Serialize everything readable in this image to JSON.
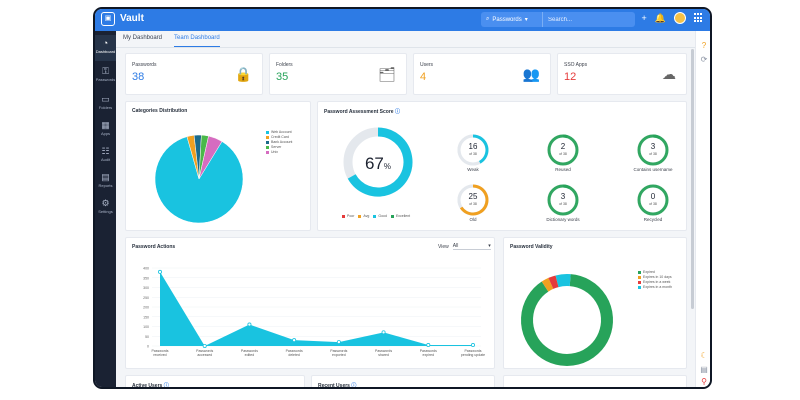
{
  "app": {
    "name": "Vault"
  },
  "topbar": {
    "search_scope": "Passwords",
    "search_placeholder": "Search..."
  },
  "sidebar": {
    "items": [
      {
        "label": "Dashboard",
        "icon": "dashboard-icon"
      },
      {
        "label": "Passwords",
        "icon": "key-icon"
      },
      {
        "label": "Folders",
        "icon": "folder-icon"
      },
      {
        "label": "Apps",
        "icon": "apps-icon"
      },
      {
        "label": "Audit",
        "icon": "audit-icon"
      },
      {
        "label": "Reports",
        "icon": "reports-icon"
      },
      {
        "label": "Settings",
        "icon": "settings-icon"
      }
    ]
  },
  "tabs": [
    {
      "label": "My Dashboard"
    },
    {
      "label": "Team Dashboard"
    }
  ],
  "stats": [
    {
      "label": "Passwords",
      "value": "38",
      "color": "#2d7be5",
      "icon": "lock-icon"
    },
    {
      "label": "Folders",
      "value": "35",
      "color": "#27a35a",
      "icon": "folder-icon"
    },
    {
      "label": "Users",
      "value": "4",
      "color": "#f0a020",
      "icon": "users-icon"
    },
    {
      "label": "SSO Apps",
      "value": "12",
      "color": "#e53b3b",
      "icon": "cloud-icon"
    }
  ],
  "categories": {
    "title": "Categories Distribution",
    "legend": [
      {
        "label": "Web Account",
        "color": "#19c3e0"
      },
      {
        "label": "Credit Card",
        "color": "#f0a020"
      },
      {
        "label": "Bank Account",
        "color": "#1b6a8a"
      },
      {
        "label": "Server",
        "color": "#4ab84a"
      },
      {
        "label": "Unix",
        "color": "#d66cc0"
      }
    ],
    "values": [
      33,
      1,
      1,
      1,
      2
    ]
  },
  "assessment": {
    "title": "Password Assessment Score",
    "score": "67",
    "score_unit": "%",
    "score_fraction": 0.67,
    "legend": [
      {
        "label": "Poor",
        "color": "#e53b3b"
      },
      {
        "label": "Avg",
        "color": "#f0a020"
      },
      {
        "label": "Good",
        "color": "#19c3e0"
      },
      {
        "label": "Excellent",
        "color": "#27a35a"
      }
    ],
    "metrics": [
      {
        "value": "16",
        "of": "of 38",
        "label": "Weak",
        "color": "#19c3e0",
        "fraction": 0.42
      },
      {
        "value": "2",
        "of": "of 38",
        "label": "Reused",
        "color": "#27a35a",
        "fraction": 0.05
      },
      {
        "value": "3",
        "of": "of 38",
        "label": "Contains username",
        "color": "#27a35a",
        "fraction": 0.08
      },
      {
        "value": "25",
        "of": "of 38",
        "label": "Old",
        "color": "#f0a020",
        "fraction": 0.66
      },
      {
        "value": "3",
        "of": "of 38",
        "label": "Dictionary words",
        "color": "#27a35a",
        "fraction": 0.08
      },
      {
        "value": "0",
        "of": "of 38",
        "label": "Recycled",
        "color": "#27a35a",
        "fraction": 0.0
      }
    ]
  },
  "actions": {
    "title": "Password Actions",
    "view_label": "View",
    "view_value": "All",
    "chart_data": {
      "type": "area",
      "categories": [
        "Passwords received",
        "Passwords accessed",
        "Passwords edited",
        "Passwords deleted",
        "Passwords exported",
        "Passwords shared",
        "Passwords expired",
        "Passwords pending update"
      ],
      "values": [
        380,
        0,
        110,
        30,
        20,
        70,
        5,
        5
      ],
      "ylim": [
        0,
        400
      ],
      "yticks": [
        0,
        50,
        100,
        150,
        200,
        250,
        300,
        350,
        400
      ],
      "color": "#19c3e0"
    }
  },
  "validity": {
    "title": "Password Validity",
    "legend": [
      {
        "label": "Expired",
        "color": "#27a35a"
      },
      {
        "label": "Expires in 10 days",
        "color": "#f0a020"
      },
      {
        "label": "Expires in a week",
        "color": "#e53b3b"
      },
      {
        "label": "Expires in a month",
        "color": "#19c3e0"
      }
    ],
    "values": [
      34,
      1,
      1,
      2
    ]
  },
  "bottom_cards": [
    {
      "title": "Active Users"
    },
    {
      "title": "Recent Users"
    },
    {
      "title": ""
    }
  ]
}
